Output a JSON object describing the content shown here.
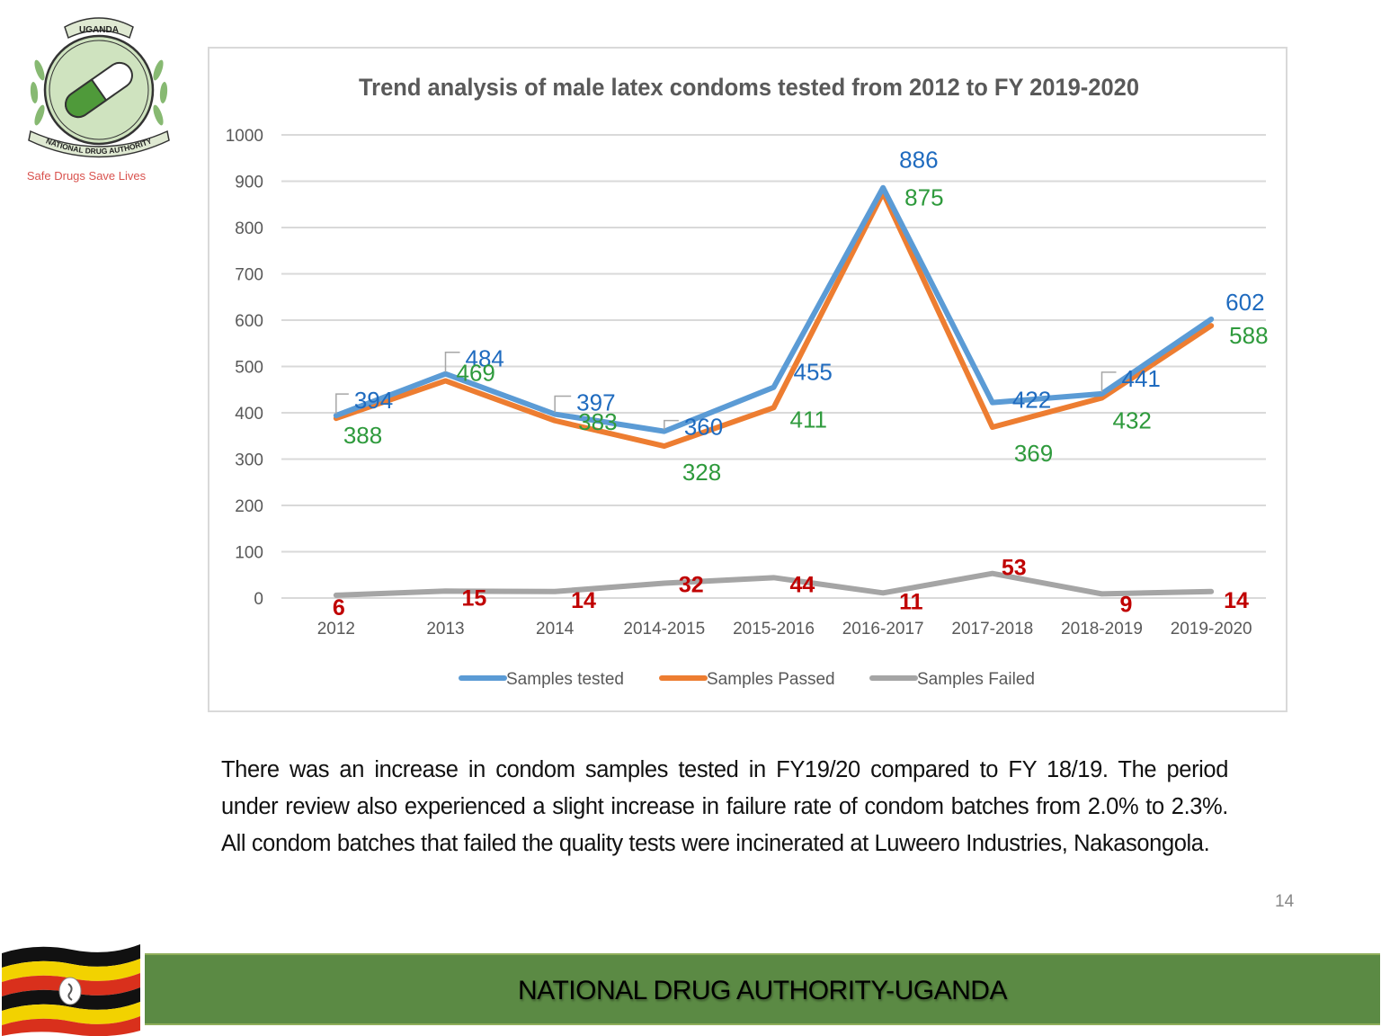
{
  "logo": {
    "top_banner": "UGANDA",
    "ribbon": "NATIONAL DRUG AUTHORITY",
    "tagline": "Safe Drugs Save Lives"
  },
  "colors": {
    "tested": "#5b9bd5",
    "passed": "#ed7d31",
    "failed": "#a5a5a5",
    "tested_label": "#1f6bbf",
    "passed_label": "#2e9a3c",
    "failed_label": "#c00000",
    "footer_green": "#5b8a44"
  },
  "chart_data": {
    "type": "line",
    "title": "Trend analysis of male latex condoms  tested from 2012 to FY 2019-2020",
    "xlabel": "",
    "ylabel": "",
    "categories": [
      "2012",
      "2013",
      "2014",
      "2014-2015",
      "2015-2016",
      "2016-2017",
      "2017-2018",
      "2018-2019",
      "2019-2020"
    ],
    "ylim": [
      0,
      1000
    ],
    "yticks": [
      0,
      100,
      200,
      300,
      400,
      500,
      600,
      700,
      800,
      900,
      1000
    ],
    "grid": true,
    "legend_position": "bottom",
    "series": [
      {
        "name": "Samples tested",
        "values": [
          394,
          484,
          397,
          360,
          455,
          886,
          422,
          441,
          602
        ]
      },
      {
        "name": "Samples Passed",
        "values": [
          388,
          469,
          383,
          328,
          411,
          875,
          369,
          432,
          588
        ]
      },
      {
        "name": "Samples  Failed",
        "values": [
          6,
          15,
          14,
          32,
          44,
          11,
          53,
          9,
          14
        ]
      }
    ]
  },
  "summary": "There was an increase in condom samples tested in FY19/20 compared to FY 18/19. The period under review also experienced a slight increase in failure rate of condom batches from 2.0% to 2.3%. All condom batches that failed the quality tests were incinerated at Luweero Industries, Nakasongola.",
  "page_number": "14",
  "footer": {
    "title": "NATIONAL DRUG AUTHORITY-UGANDA"
  }
}
